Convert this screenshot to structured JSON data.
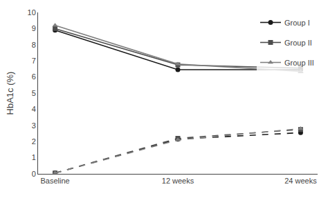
{
  "chart_data": {
    "type": "line",
    "categories": [
      "Baseline",
      "12 weeks",
      "24 weeks"
    ],
    "ylabel": "HbA1c (%)",
    "ylim": [
      0,
      10
    ],
    "yticks": [
      0,
      1,
      2,
      3,
      4,
      5,
      6,
      7,
      8,
      9,
      10
    ],
    "grid": false,
    "legend": "upper right",
    "series": [
      {
        "name": "Group I",
        "color": "#1a1a1a",
        "marker": "circle",
        "line_style": "solid",
        "values": [
          8.9,
          6.45,
          6.45
        ]
      },
      {
        "name": "Group II",
        "color": "#4d4d4d",
        "marker": "square",
        "line_style": "solid",
        "values": [
          9.0,
          6.75,
          6.55
        ]
      },
      {
        "name": "Group III",
        "color": "#808080",
        "marker": "triangle-up",
        "line_style": "solid",
        "values": [
          9.2,
          6.8,
          6.35
        ]
      },
      {
        "name": "Group I",
        "color": "#1a1a1a",
        "marker": "circle",
        "line_style": "dashed",
        "values": [
          0.05,
          2.15,
          2.55
        ]
      },
      {
        "name": "Group II",
        "color": "#4d4d4d",
        "marker": "square",
        "line_style": "dashed",
        "values": [
          0.05,
          2.2,
          2.75
        ]
      },
      {
        "name": "Group III",
        "color": "#808080",
        "marker": "triangle-up",
        "line_style": "dashed",
        "values": [
          0.05,
          2.1,
          2.8
        ]
      }
    ]
  }
}
